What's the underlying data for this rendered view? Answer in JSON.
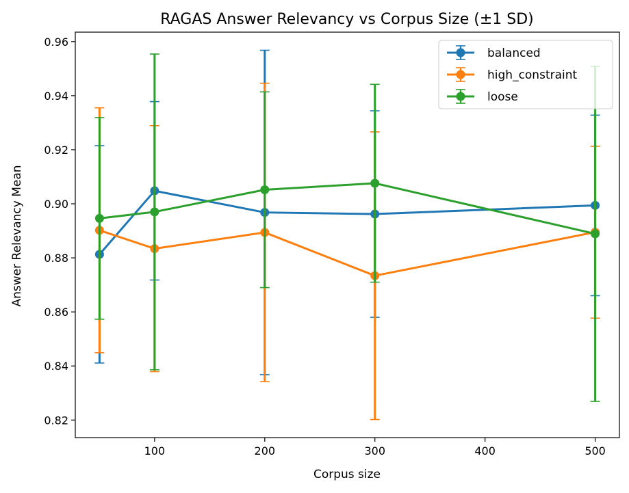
{
  "chart_data": {
    "type": "line",
    "title": "RAGAS Answer Relevancy vs Corpus Size (±1 SD)",
    "xlabel": "Corpus size",
    "ylabel": "Answer Relevancy Mean",
    "xlim": [
      28,
      522
    ],
    "ylim": [
      0.8135,
      0.9635
    ],
    "xticks": [
      100,
      200,
      300,
      400,
      500
    ],
    "yticks": [
      0.82,
      0.84,
      0.86,
      0.88,
      0.9,
      0.92,
      0.94,
      0.96
    ],
    "ytick_labels": [
      "0.82",
      "0.84",
      "0.86",
      "0.88",
      "0.90",
      "0.92",
      "0.94",
      "0.96"
    ],
    "legend_position": "upper right",
    "grid": false,
    "error_bars": "±1 SD",
    "series": [
      {
        "name": "balanced",
        "color": "#1f77b4",
        "x": [
          50,
          100,
          200,
          300,
          500
        ],
        "y": [
          0.8813,
          0.9048,
          0.8968,
          0.8962,
          0.8994
        ],
        "sd": [
          0.0402,
          0.033,
          0.06,
          0.0382,
          0.0334
        ]
      },
      {
        "name": "high_constraint",
        "color": "#ff7f0e",
        "x": [
          50,
          100,
          200,
          300,
          500
        ],
        "y": [
          0.8902,
          0.8834,
          0.8894,
          0.8734,
          0.8895
        ],
        "sd": [
          0.0453,
          0.0455,
          0.0552,
          0.0532,
          0.0318
        ]
      },
      {
        "name": "loose",
        "color": "#2ca02c",
        "x": [
          50,
          100,
          200,
          300,
          500
        ],
        "y": [
          0.8946,
          0.897,
          0.9052,
          0.9076,
          0.8889
        ],
        "sd": [
          0.0373,
          0.0584,
          0.0362,
          0.0366,
          0.062
        ]
      }
    ]
  }
}
